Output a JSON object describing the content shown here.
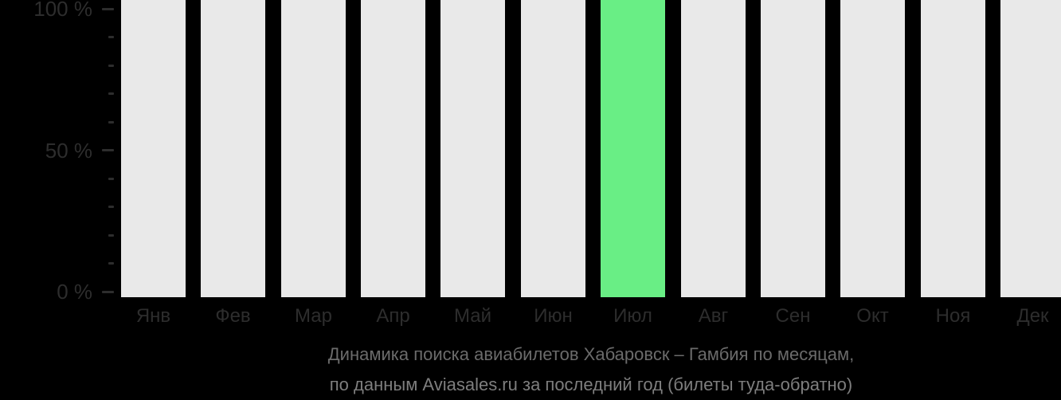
{
  "chart_data": {
    "type": "bar",
    "title": "Динамика поиска авиабилетов Хабаровск – Гамбия по месяцам,",
    "subtitle": "по данным Aviasales.ru за последний год (билеты туда-обратно)",
    "categories": [
      "Янв",
      "Фев",
      "Мар",
      "Апр",
      "Май",
      "Июн",
      "Июл",
      "Авг",
      "Сен",
      "Окт",
      "Ноя",
      "Дек"
    ],
    "values": [
      100,
      100,
      100,
      100,
      100,
      100,
      100,
      100,
      100,
      100,
      100,
      100
    ],
    "unit": "%",
    "highlight_category": "Июл",
    "xlabel": "",
    "ylabel": "",
    "ylim": [
      0,
      100
    ],
    "y_major_ticks": [
      0,
      50,
      100
    ],
    "y_tick_labels": [
      "0 %",
      "50 %",
      "100 %"
    ],
    "y_minor_step": 10,
    "grid": false,
    "legend": false,
    "colors": {
      "background": "#000000",
      "bar": "#e9e9e9",
      "highlight": "#69ee85",
      "axis_text": "#2d2d2d",
      "title": "#6b6b6b",
      "subtitle": "#7e7e7e"
    }
  }
}
